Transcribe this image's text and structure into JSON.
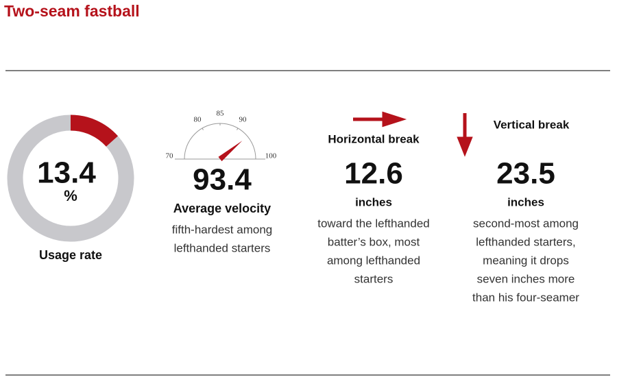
{
  "title": "Two-seam fastball",
  "chart_data": [
    {
      "type": "donut",
      "values": [
        13.4
      ],
      "value_labels": [
        "13.4"
      ],
      "unit": "%",
      "label": "Usage rate",
      "colors": [
        "#b5121b",
        "#c8c8cc"
      ]
    },
    {
      "type": "gauge",
      "value": 93.4,
      "xlim": [
        70,
        100
      ],
      "xticks": [
        70,
        80,
        85,
        90,
        100
      ],
      "label": "Average velocity",
      "note_lines": [
        "fifth-hardest among",
        "lefthanded starters"
      ],
      "color": "#b5121b"
    }
  ],
  "stats": [
    {
      "heading": "Horizontal break",
      "value": 12.6,
      "unit": "inches",
      "note_lines": [
        "toward the lefthanded",
        "batter’s box, most",
        "among lefthanded",
        "starters"
      ]
    },
    {
      "heading": "Vertical break",
      "value": 23.5,
      "unit": "inches",
      "note_lines": [
        "second-most among",
        "lefthanded starters,",
        "meaning it drops",
        "seven inches more",
        "than his four-seamer"
      ]
    }
  ]
}
